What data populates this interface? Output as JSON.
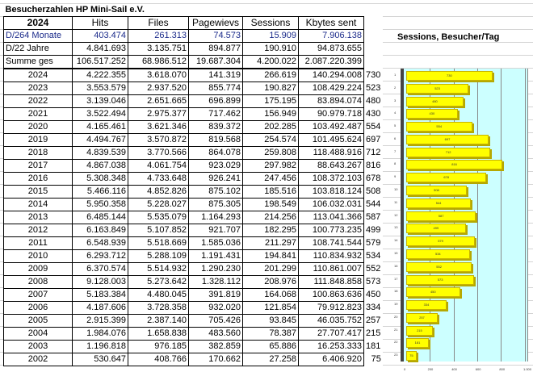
{
  "title": "Besucherzahlen HP Mini-Sail e.V.",
  "header": [
    "2024",
    "Hits",
    "Files",
    "Pagewievs",
    "Sessions",
    "Kbytes sent"
  ],
  "summary": [
    [
      "D/264 Monate",
      "403.474",
      "261.313",
      "74.573",
      "15.909",
      "7.906.138"
    ],
    [
      "D/22 Jahre",
      "4.841.693",
      "3.135.751",
      "894.877",
      "190.910",
      "94.873.655"
    ],
    [
      "Summe ges",
      "106.517.252",
      "68.986.512",
      "19.687.304",
      "4.200.022",
      "2.087.220.399"
    ]
  ],
  "rows": [
    [
      "2024",
      "4.222.355",
      "3.618.070",
      "141.319",
      "266.619",
      "140.294.008",
      "730"
    ],
    [
      "2023",
      "3.553.579",
      "2.937.520",
      "855.774",
      "190.827",
      "108.429.224",
      "523"
    ],
    [
      "2022",
      "3.139.046",
      "2.651.665",
      "696.899",
      "175.195",
      "83.894.074",
      "480"
    ],
    [
      "2021",
      "3.522.494",
      "2.975.377",
      "717.462",
      "156.949",
      "90.979.718",
      "430"
    ],
    [
      "2020",
      "4.165.461",
      "3.621.346",
      "839.372",
      "202.285",
      "103.492.487",
      "554"
    ],
    [
      "2019",
      "4.494.767",
      "3.570.872",
      "819.568",
      "254.574",
      "101.495.624",
      "697"
    ],
    [
      "2018",
      "4.839.539",
      "3.770.566",
      "864.078",
      "259.808",
      "118.488.916",
      "712"
    ],
    [
      "2017",
      "4.867.038",
      "4.061.754",
      "923.029",
      "297.982",
      "88.643.267",
      "816"
    ],
    [
      "2016",
      "5.308.348",
      "4.733.648",
      "926.241",
      "247.456",
      "108.372.103",
      "678"
    ],
    [
      "2015",
      "5.466.116",
      "4.852.826",
      "875.102",
      "185.516",
      "103.818.124",
      "508"
    ],
    [
      "2014",
      "5.950.358",
      "5.228.027",
      "875.305",
      "198.549",
      "106.032.031",
      "544"
    ],
    [
      "2013",
      "6.485.144",
      "5.535.079",
      "1.164.293",
      "214.256",
      "113.041.366",
      "587"
    ],
    [
      "2012",
      "6.163.849",
      "5.107.852",
      "921.707",
      "182.295",
      "100.773.235",
      "499"
    ],
    [
      "2011",
      "6.548.939",
      "5.518.669",
      "1.585.036",
      "211.297",
      "108.741.544",
      "579"
    ],
    [
      "2010",
      "6.293.712",
      "5.288.109",
      "1.191.431",
      "194.841",
      "110.834.932",
      "534"
    ],
    [
      "2009",
      "6.370.574",
      "5.514.932",
      "1.290.230",
      "201.299",
      "110.861.007",
      "552"
    ],
    [
      "2008",
      "9.128.003",
      "5.273.642",
      "1.328.112",
      "208.976",
      "111.848.858",
      "573"
    ],
    [
      "2007",
      "5.183.384",
      "4.480.045",
      "391.819",
      "164.068",
      "100.863.636",
      "450"
    ],
    [
      "2006",
      "4.187.606",
      "3.728.358",
      "932.020",
      "121.854",
      "79.912.823",
      "334"
    ],
    [
      "2005",
      "2.915.399",
      "2.387.140",
      "705.426",
      "93.845",
      "46.035.752",
      "257"
    ],
    [
      "2004",
      "1.984.076",
      "1.658.838",
      "483.560",
      "78.387",
      "27.707.417",
      "215"
    ],
    [
      "2003",
      "1.196.818",
      "976.185",
      "382.859",
      "65.886",
      "16.253.333",
      "181"
    ],
    [
      "2002",
      "530.647",
      "408.766",
      "170.662",
      "27.258",
      "6.406.920",
      "75"
    ]
  ],
  "chart_data": {
    "type": "bar",
    "title": "Sessions, Besucher/Tag",
    "categories": [
      "1",
      "2",
      "3",
      "4",
      "5",
      "6",
      "7",
      "8",
      "9",
      "10",
      "11",
      "12",
      "13",
      "14",
      "15",
      "16",
      "17",
      "18",
      "19",
      "20",
      "21",
      "22",
      "23"
    ],
    "values": [
      730,
      523,
      480,
      430,
      554,
      697,
      712,
      816,
      678,
      508,
      544,
      587,
      499,
      579,
      534,
      552,
      573,
      450,
      334,
      257,
      215,
      181,
      75
    ],
    "xlim": [
      0,
      1000
    ],
    "xticks": [
      "0",
      "200",
      "400",
      "600",
      "800",
      "1.000"
    ],
    "bar_color": "#ffff00",
    "plot_bg": "#ccffff"
  }
}
